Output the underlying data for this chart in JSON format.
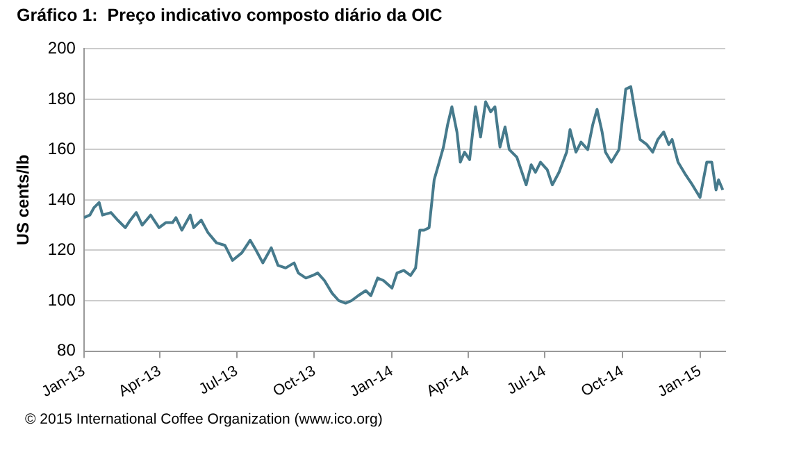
{
  "chart_data": {
    "type": "line",
    "title": "Gráfico 1:  Preço indicativo composto diário da OIC",
    "ylabel": "US cents/lb",
    "annotations": [
      "© 2015 International Coffee Organization (www.ico.org)"
    ],
    "x": [
      "2013-01-01",
      "2013-01-08",
      "2013-01-13",
      "2013-01-19",
      "2013-01-23",
      "2013-02-02",
      "2013-02-10",
      "2013-02-19",
      "2013-02-25",
      "2013-03-04",
      "2013-03-11",
      "2013-03-21",
      "2013-03-31",
      "2013-04-08",
      "2013-04-16",
      "2013-04-20",
      "2013-04-27",
      "2013-05-07",
      "2013-05-11",
      "2013-05-20",
      "2013-05-28",
      "2013-06-07",
      "2013-06-17",
      "2013-06-26",
      "2013-07-07",
      "2013-07-17",
      "2013-07-24",
      "2013-08-01",
      "2013-08-11",
      "2013-08-19",
      "2013-08-28",
      "2013-09-07",
      "2013-09-12",
      "2013-09-21",
      "2013-09-29",
      "2013-10-05",
      "2013-10-13",
      "2013-10-22",
      "2013-10-30",
      "2013-11-07",
      "2013-11-14",
      "2013-11-22",
      "2013-12-01",
      "2013-12-07",
      "2013-12-15",
      "2013-12-22",
      "2014-01-01",
      "2014-01-07",
      "2014-01-15",
      "2014-01-23",
      "2014-01-29",
      "2014-02-03",
      "2014-02-08",
      "2014-02-14",
      "2014-02-20",
      "2014-02-26",
      "2014-03-03",
      "2014-03-08",
      "2014-03-13",
      "2014-03-19",
      "2014-03-23",
      "2014-03-28",
      "2014-04-03",
      "2014-04-10",
      "2014-04-16",
      "2014-04-22",
      "2014-04-28",
      "2014-05-03",
      "2014-05-09",
      "2014-05-15",
      "2014-05-20",
      "2014-05-29",
      "2014-06-09",
      "2014-06-15",
      "2014-06-20",
      "2014-06-26",
      "2014-07-04",
      "2014-07-10",
      "2014-07-18",
      "2014-07-27",
      "2014-07-31",
      "2014-08-07",
      "2014-08-13",
      "2014-08-21",
      "2014-08-27",
      "2014-09-01",
      "2014-09-07",
      "2014-09-11",
      "2014-09-18",
      "2014-09-27",
      "2014-10-05",
      "2014-10-11",
      "2014-10-16",
      "2014-10-22",
      "2014-10-30",
      "2014-11-06",
      "2014-11-12",
      "2014-11-19",
      "2014-11-25",
      "2014-11-29",
      "2014-12-06",
      "2014-12-15",
      "2014-12-23",
      "2015-01-01",
      "2015-01-09",
      "2015-01-15",
      "2015-01-20",
      "2015-01-23",
      "2015-01-28"
    ],
    "series": [
      {
        "color": "#467a8c",
        "values": [
          133,
          134,
          137,
          139,
          134,
          135,
          132,
          129,
          132,
          135,
          130,
          134,
          129,
          131,
          131,
          133,
          128,
          134,
          129,
          132,
          127,
          123,
          122,
          116,
          119,
          124,
          120,
          115,
          121,
          114,
          113,
          115,
          111,
          109,
          110,
          111,
          108,
          103,
          100,
          99,
          100,
          102,
          104,
          102,
          109,
          108,
          105,
          111,
          112,
          110,
          113,
          128,
          128,
          129,
          148,
          155,
          161,
          170,
          177,
          167,
          155,
          159,
          156,
          177,
          165,
          179,
          175,
          177,
          161,
          169,
          160,
          157,
          146,
          154,
          151,
          155,
          152,
          146,
          151,
          159,
          168,
          159,
          163,
          160,
          170,
          176,
          167,
          159,
          155,
          160,
          184,
          185,
          175,
          164,
          162,
          159,
          164,
          167,
          162,
          164,
          155,
          150,
          146,
          141,
          155,
          155,
          144,
          148,
          144
        ]
      }
    ],
    "xlim": [
      "2013-01-01",
      "2015-01-31"
    ],
    "xticks": [
      {
        "value": "2013-01-01",
        "label": "Jan-13"
      },
      {
        "value": "2013-04-01",
        "label": "Apr-13"
      },
      {
        "value": "2013-07-01",
        "label": "Jul-13"
      },
      {
        "value": "2013-10-01",
        "label": "Oct-13"
      },
      {
        "value": "2014-01-01",
        "label": "Jan-14"
      },
      {
        "value": "2014-04-01",
        "label": "Apr-14"
      },
      {
        "value": "2014-07-01",
        "label": "Jul-14"
      },
      {
        "value": "2014-10-01",
        "label": "Oct-14"
      },
      {
        "value": "2015-01-01",
        "label": "Jan-15"
      }
    ],
    "ylim": [
      80,
      200
    ],
    "yticks": [
      80,
      100,
      120,
      140,
      160,
      180,
      200
    ],
    "grid": "y",
    "legend": false,
    "marker": "none",
    "line_style": "solid"
  }
}
